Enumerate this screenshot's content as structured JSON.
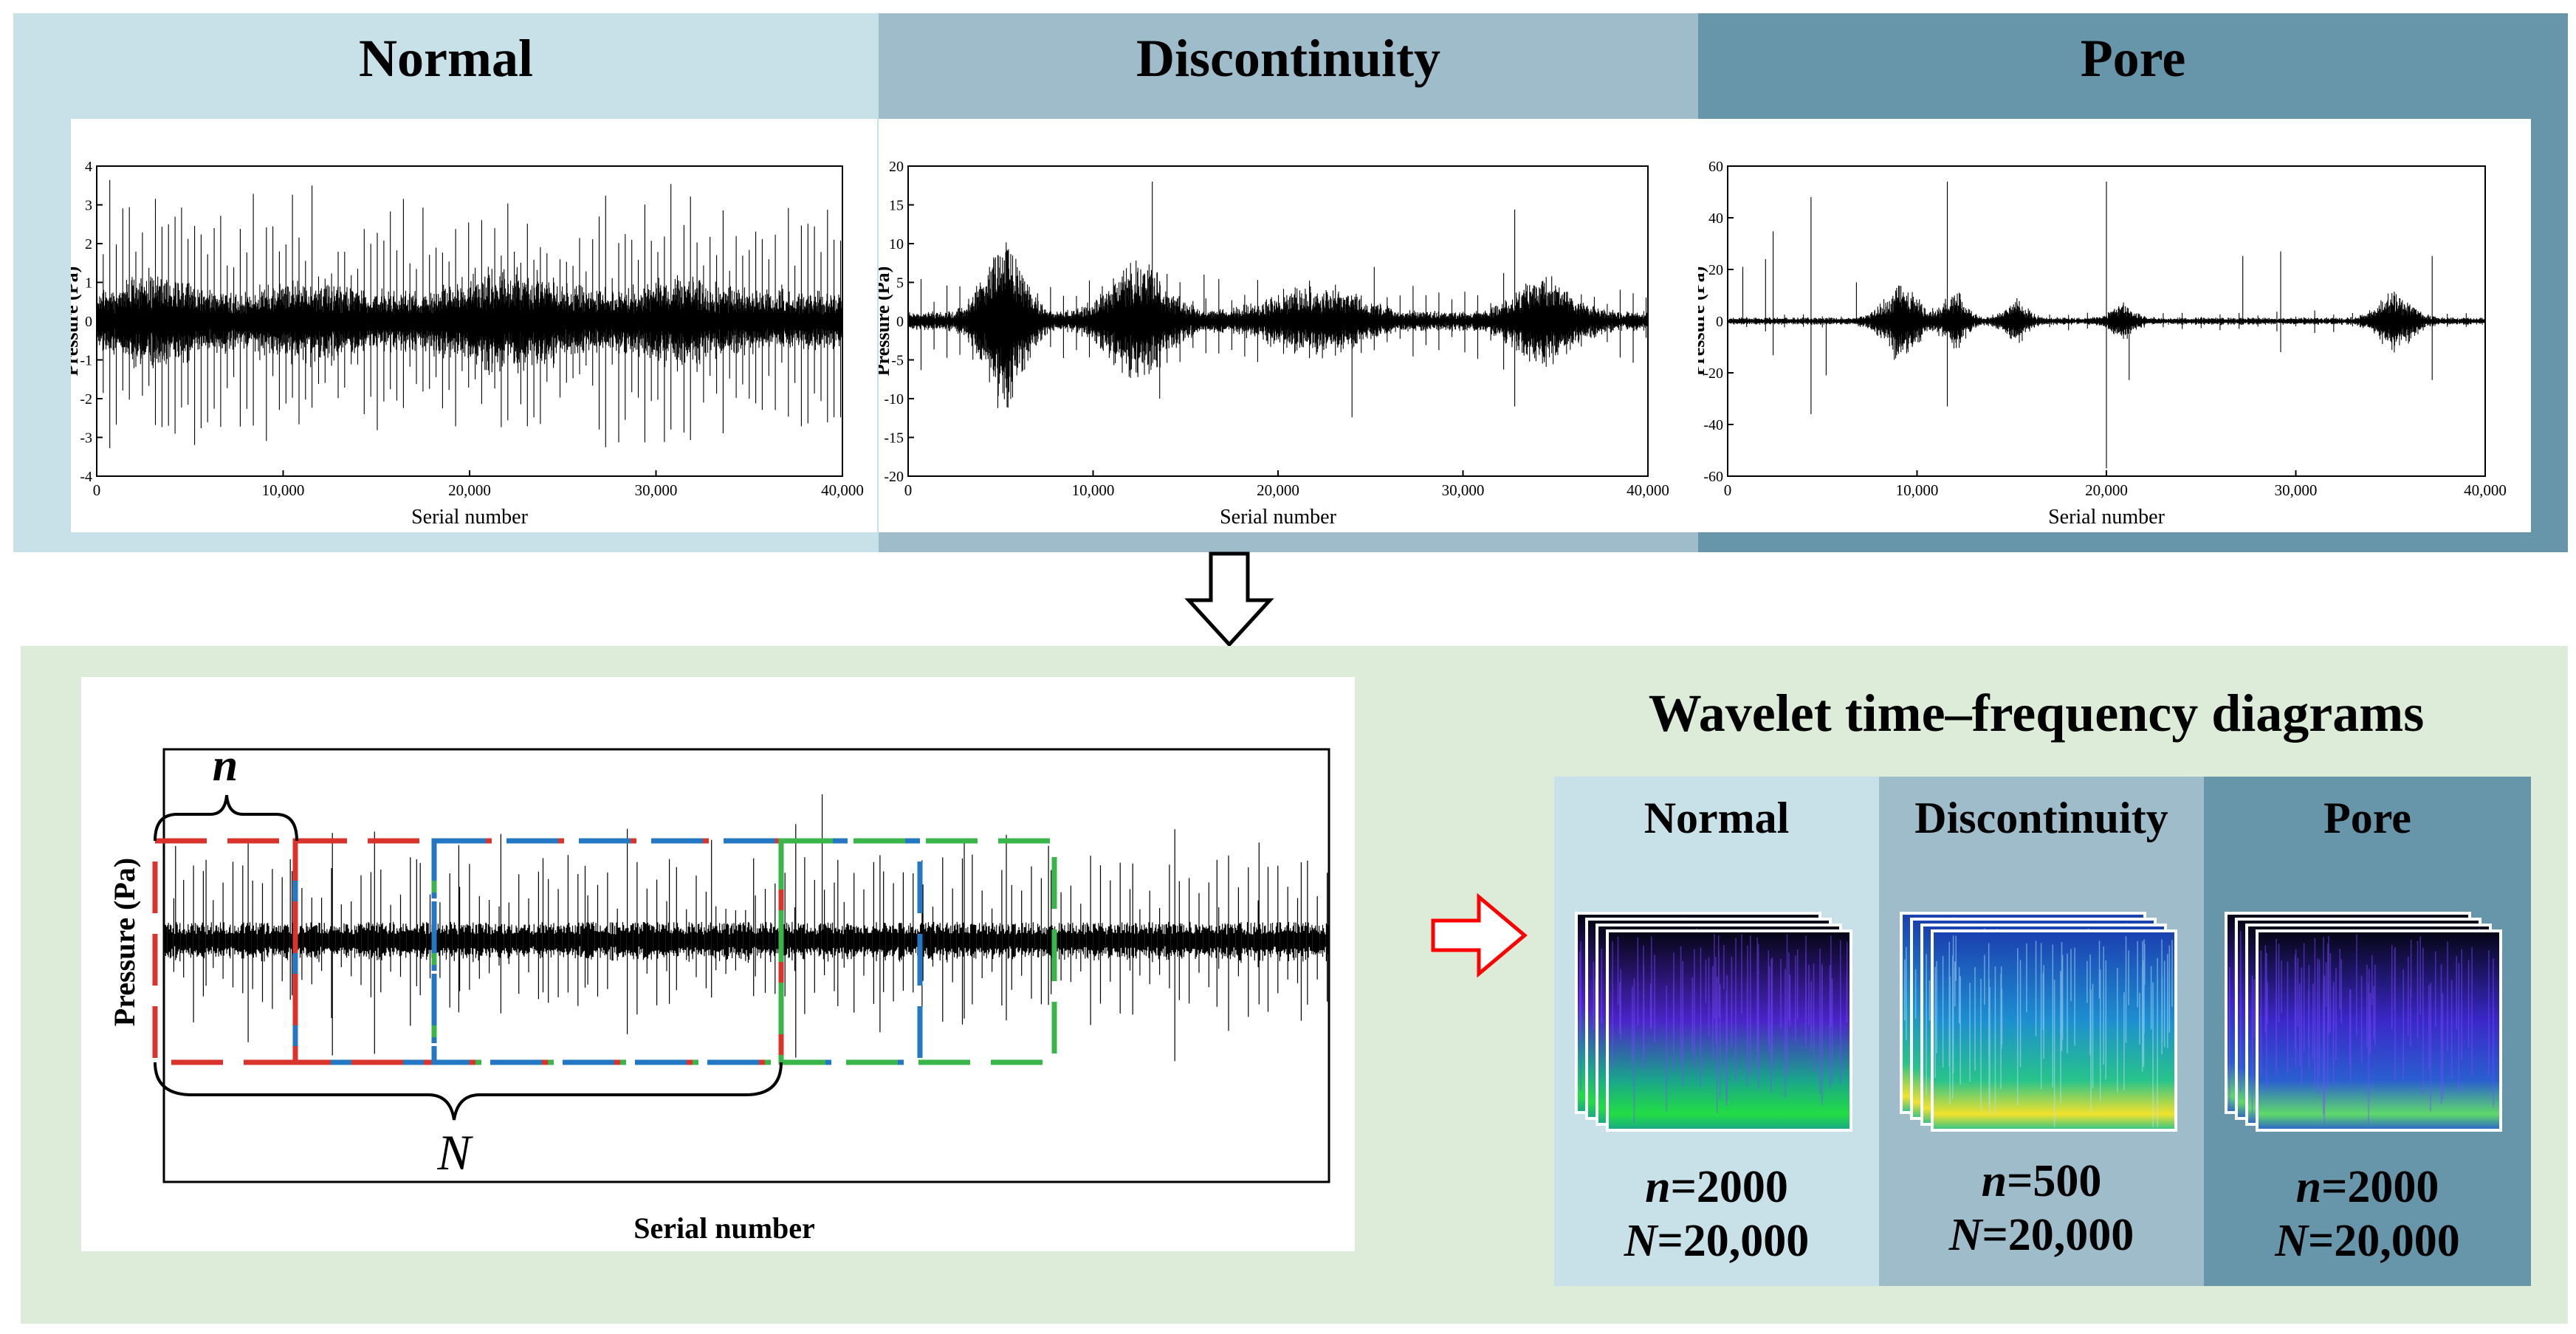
{
  "top": {
    "panels": [
      {
        "title": "Normal",
        "bg": "#c8e0e8",
        "ylabel": "Pressure (Pa)",
        "xlabel": "Serial number",
        "yticks": [
          "4",
          "3",
          "2",
          "1",
          "0",
          "-1",
          "-2",
          "-3",
          "-4"
        ],
        "xticks": [
          "0",
          "10,000",
          "20,000",
          "30,000",
          "40,000"
        ],
        "ylim": [
          -4,
          4
        ],
        "xlim": [
          0,
          40000
        ]
      },
      {
        "title": "Discontinuity",
        "bg": "#9fbccb",
        "ylabel": "Pressure (Pa)",
        "xlabel": "Serial number",
        "yticks": [
          "20",
          "15",
          "10",
          "5",
          "0",
          "-5",
          "-10",
          "-15",
          "-20"
        ],
        "xticks": [
          "0",
          "10,000",
          "20,000",
          "30,000",
          "40,000"
        ],
        "ylim": [
          -20,
          20
        ],
        "xlim": [
          0,
          40000
        ]
      },
      {
        "title": "Pore",
        "bg": "#6796aa",
        "ylabel": "Pressure (Pa)",
        "xlabel": "Serial number",
        "yticks": [
          "60",
          "40",
          "20",
          "0",
          "-20",
          "-40",
          "-60"
        ],
        "xticks": [
          "0",
          "10,000",
          "20,000",
          "30,000",
          "40,000"
        ],
        "ylim": [
          -60,
          60
        ],
        "xlim": [
          0,
          40000
        ]
      }
    ]
  },
  "bottom": {
    "bg": "#dcecd8",
    "signal": {
      "ylabel": "Pressure (Pa)",
      "xlabel": "Serial number",
      "small_label": "n",
      "big_label": "N"
    },
    "wavelet": {
      "title": "Wavelet time–frequency diagrams",
      "columns": [
        {
          "title": "Normal",
          "bg": "#c8e0e8",
          "n_label": "n",
          "n_value": "=2000",
          "N_label": "N",
          "N_value": "=20,000"
        },
        {
          "title": "Discontinuity",
          "bg": "#9fbccb",
          "n_label": "n",
          "n_value": "=500",
          "N_label": "N",
          "N_value": "=20,000"
        },
        {
          "title": "Pore",
          "bg": "#6796aa",
          "n_label": "n",
          "n_value": "=2000",
          "N_label": "N",
          "N_value": "=20,000"
        }
      ]
    }
  },
  "colors": {
    "red": "#d9342b",
    "blue": "#2477c2",
    "green": "#39b54a",
    "arrow_red": "#ff0000"
  }
}
